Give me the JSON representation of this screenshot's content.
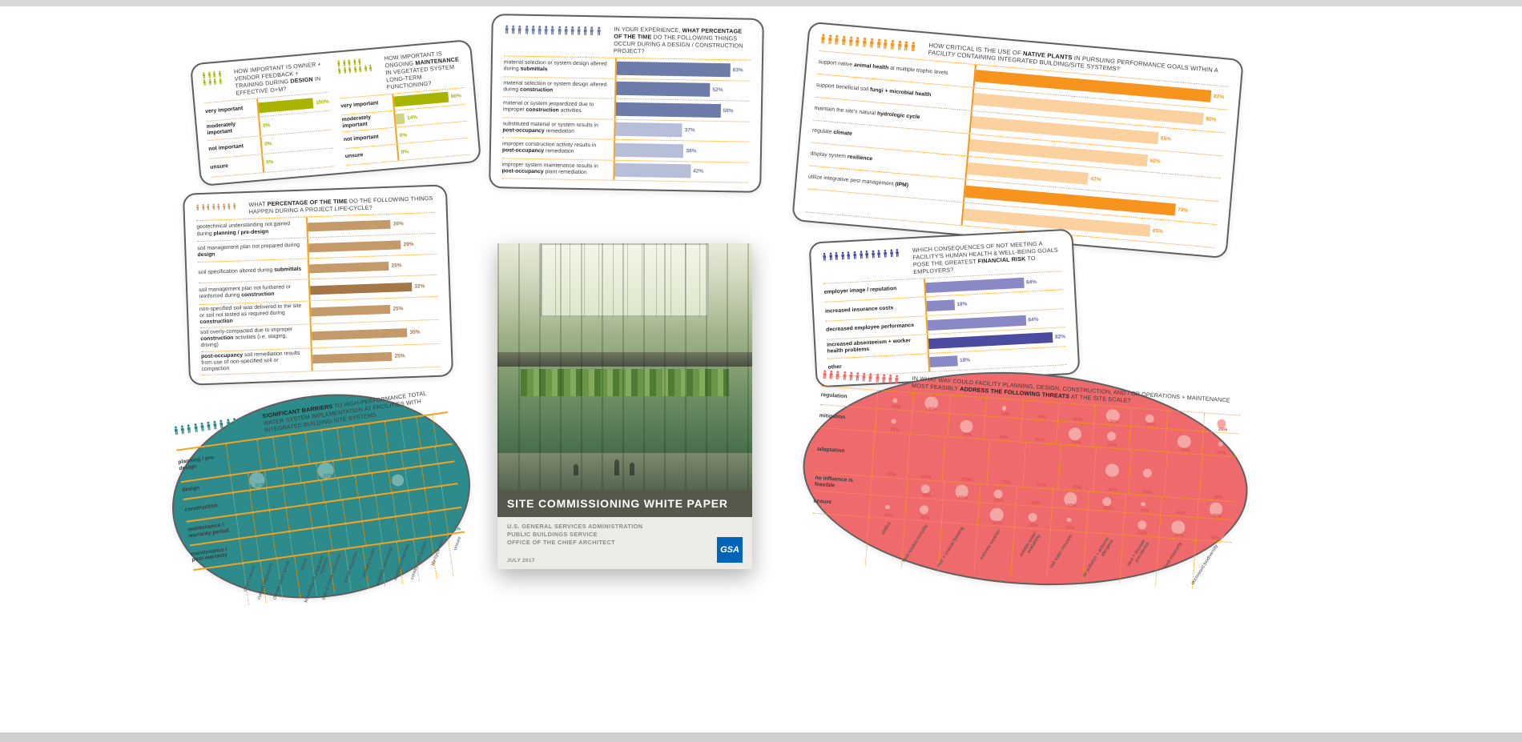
{
  "canvas": {
    "background": "#ffffff",
    "edge_strip_color": "#d6d9d5"
  },
  "chart_data": [
    {
      "id": "design-feedback-importance",
      "type": "bar",
      "title": "HOW IMPORTANT IS OWNER + VENDOR FEEDBACK + TRAINING DURING **DESIGN** IN EFFECTIVE O+M?",
      "categories": [
        "**very important**",
        "**moderately important**",
        "**not important**",
        "**unsure**"
      ],
      "values": [
        100,
        0,
        0,
        0
      ],
      "variants": [
        "dark",
        "dark",
        "dark",
        "dark"
      ],
      "unit": "%",
      "xlim": [
        0,
        100
      ],
      "grid": "dotted-orange",
      "legend_position": "none",
      "people_rows": [
        4,
        4
      ],
      "colors": {
        "bar": "#a9b400",
        "bar_light": "#ced387",
        "bar_deep": "#8f9900",
        "value": "#a9b400",
        "axis": "#f7a21f",
        "people": "#a9b400"
      }
    },
    {
      "id": "maintenance-importance",
      "type": "bar",
      "title": "HOW IMPORTANT IS ONGOING **MAINTENANCE** IN VEGETATED SYSTEM LONG-TERM FUNCTIONING?",
      "categories": [
        "**very important**",
        "**moderately important**",
        "**not important**",
        "**unsure**"
      ],
      "values": [
        86,
        14,
        0,
        0
      ],
      "variants": [
        "dark",
        "light",
        "dark",
        "dark"
      ],
      "unit": "%",
      "xlim": [
        0,
        100
      ],
      "grid": "dotted-orange",
      "legend_position": "none",
      "people_rows": [
        5,
        7
      ],
      "colors": {
        "bar": "#a9b400",
        "bar_light": "#ced387",
        "bar_deep": "#8f9900",
        "value": "#a9b400",
        "axis": "#f7a21f",
        "people": "#a9b400"
      }
    },
    {
      "id": "design-construction-occurrence",
      "type": "bar",
      "title": "IN YOUR EXPERIENCE, **WHAT PERCENTAGE OF THE TIME** DO THE FOLLOWING THINGS OCCUR DURING A DESIGN / CONSTRUCTION PROJECT?",
      "categories": [
        "material selection or system design altered during **submittals**",
        "material selection or system design altered during **construction**",
        "material or system jeopardized due to improper **construction** activities",
        "substituted material or system results in **post-occupancy** remediation",
        "improper construction activity results in **post-occupancy** remediation",
        "improper system maintenance results in **post-occupancy** plant remediation"
      ],
      "values": [
        63,
        52,
        58,
        37,
        38,
        42
      ],
      "variants": [
        "dark",
        "dark",
        "dark",
        "light",
        "light",
        "light"
      ],
      "unit": "%",
      "xlim": [
        0,
        100
      ],
      "grid": "dotted-orange",
      "legend_position": "none",
      "people_rows": [
        15
      ],
      "colors": {
        "bar": "#6d7ba8",
        "bar_light": "#b7bed8",
        "bar_deep": "#555f8d",
        "value": "#6d7ba8",
        "axis": "#f7a21f",
        "people": "#6d7ba8"
      }
    },
    {
      "id": "native-plants-criticality",
      "type": "bar",
      "title": "HOW CRITICAL IS THE USE OF **NATIVE PLANTS** IN PURSUING PERFORMANCE GOALS WITHIN A FACILITY CONTAINING INTEGRATED BUILDING/SITE SYSTEMS?",
      "categories": [
        "support native **animal health** at multiple trophic levels",
        "support beneficial soil **fungi + microbial health**",
        "maintain the site's natural **hydrologic cycle**",
        "regulate **climate**",
        "display system **resilience**",
        "utilize integrative pest management **(IPM)**",
        ""
      ],
      "values": [
        82,
        80,
        65,
        62,
        42,
        73,
        65
      ],
      "variants": [
        "dark",
        "light",
        "light",
        "light",
        "light",
        "dark",
        "light"
      ],
      "unit": "%",
      "xlim": [
        0,
        100
      ],
      "grid": "dotted-orange",
      "legend_position": "none",
      "people_rows": [
        14
      ],
      "colors": {
        "bar": "#f7941d",
        "bar_light": "#fbd1a0",
        "bar_deep": "#e07f0a",
        "value": "#f7941d",
        "axis": "#f7941d",
        "people": "#f7941d"
      }
    },
    {
      "id": "project-lifecycle-soil",
      "type": "bar",
      "title": "WHAT **PERCENTAGE OF THE TIME** DO THE FOLLOWING THINGS HAPPEN DURING A PROJECT LIFE-CYCLE?",
      "categories": [
        "geotechnical understanding not gained during **planning / pre-design**",
        "soil management plan not prepared during **design**",
        "soil specification altered during **submittals**",
        "soil management plan not furthered or reinforced during **construction**",
        "non-specified soil was delivered to the site or soil not tested as required during **construction**",
        "soil overly-compacted due to improper **construction** activities (i.e. staging, driving)",
        "**post-occupancy** soil remediation results from use of non-specified soil or compaction"
      ],
      "values": [
        26,
        29,
        25,
        32,
        25,
        30,
        25
      ],
      "variants": [
        "dark",
        "dark",
        "dark",
        "deep",
        "dark",
        "dark",
        "dark"
      ],
      "unit": "%",
      "xlim": [
        0,
        40
      ],
      "grid": "dotted-orange",
      "legend_position": "none",
      "people_rows": [
        8
      ],
      "colors": {
        "bar": "#c59a6b",
        "bar_light": "#e0c5a4",
        "bar_deep": "#a47648",
        "value": "#a47648",
        "axis": "#f7a21f",
        "people": "#c59a6b"
      }
    },
    {
      "id": "financial-risk-consequences",
      "type": "bar",
      "title": "WHICH CONSEQUENCES OF NOT MEETING A FACILITY'S HUMAN HEALTH & WELL-BEING GOALS POSE THE GREATEST **FINANCIAL RISK** TO EMPLOYERS?",
      "categories": [
        "**employer image / reputation**",
        "**increased insurance costs**",
        "**decreased employee performance**",
        "**increased absenteeism + worker health problems**",
        "**other**"
      ],
      "values": [
        64,
        18,
        64,
        82,
        18
      ],
      "variants": [
        "dark",
        "dark",
        "dark",
        "deep",
        "dark"
      ],
      "unit": "%",
      "xlim": [
        0,
        100
      ],
      "grid": "dotted-orange",
      "legend_position": "none",
      "people_rows": [
        13
      ],
      "colors": {
        "bar": "#8a89c6",
        "bar_light": "#c3c2e0",
        "bar_deep": "#4c4b9f",
        "value": "#6b69b4",
        "axis": "#f7a21f",
        "people": "#4c4b9f"
      }
    },
    {
      "id": "water-system-barriers",
      "type": "scatter",
      "title": "**SIGNIFICANT BARRIERS** TO HIGH-PERFORMANCE TOTAL WATER SYSTEM IMPLEMENTATION AT FACILITIES WITH INTEGRATED BUILDING-SITE SYSTEMS",
      "rows": [
        "planning / pre-design",
        "design",
        "construction",
        "maintenance / warranty period",
        "maintenance / post-warranty"
      ],
      "columns": [
        "client interest",
        "current regulations",
        "climate (don't know)",
        "space",
        "knowledge of integrated systems",
        "data to make a decision",
        "design expertise",
        "delivery model",
        "available technology",
        "available materials",
        "construction budget",
        "life-cycle cost",
        "unsure"
      ],
      "matrix": [
        [
          62,
          8,
          0,
          0,
          15,
          0,
          0,
          8,
          0,
          0,
          8,
          0,
          0
        ],
        [
          8,
          31,
          0,
          8,
          0,
          31,
          8,
          0,
          16,
          0,
          0,
          0,
          0
        ],
        [
          0,
          8,
          0,
          42,
          0,
          17,
          0,
          0,
          0,
          25,
          0,
          23,
          0
        ],
        [
          23,
          0,
          0,
          46,
          0,
          0,
          15,
          0,
          0,
          0,
          23,
          0,
          0
        ],
        [
          15,
          0,
          0,
          46,
          0,
          15,
          0,
          8,
          0,
          0,
          0,
          15,
          8
        ]
      ],
      "unit": "%",
      "grid": "orange-rows-dotted-columns",
      "legend_position": "none",
      "people_rows": [
        12
      ],
      "colors": {
        "bubble": "#2e8b8b",
        "bubble_light": "#74b2b0",
        "value": "#2e8b8b",
        "grid": "#f7a21f",
        "people": "#2e8b8b"
      }
    },
    {
      "id": "site-threats-feasibility",
      "type": "scatter",
      "title": "IN WHAT WAY COULD FACILITY PLANNING, DESIGN, CONSTRUCTION, AND / OR OPERATIONS + MAINTENANCE MOST FEASIBLY **ADDRESS THE FOLLOWING THREATS** AT THE SITE SCALE?",
      "rows": [
        "regulation",
        "mitigation",
        "adaptation",
        "no influence is feasible",
        "unsure"
      ],
      "columns": [
        "wildfire",
        "heat-related mortality",
        "river + coastal flooding",
        "extreme weather",
        "potable water availability",
        "salt water intrusion",
        "air pollution + airborne allergens",
        "pest + disease prevalence",
        "food insecurity",
        "decreased biodiversity"
      ],
      "matrix": [
        [
          10,
          30,
          0,
          10,
          40,
          40,
          30,
          20,
          0,
          20
        ],
        [
          10,
          0,
          30,
          40,
          50,
          30,
          20,
          0,
          30,
          10
        ],
        [
          70,
          60,
          100,
          70,
          50,
          40,
          30,
          20,
          0,
          40
        ],
        [
          0,
          20,
          30,
          20,
          40,
          30,
          20,
          10,
          40,
          30
        ],
        [
          10,
          20,
          0,
          30,
          20,
          10,
          0,
          20,
          30,
          50
        ]
      ],
      "unit": "%",
      "grid": "dotted-orange",
      "legend_position": "none",
      "people_rows": [
        12
      ],
      "colors": {
        "bubble": "#ee6a6c",
        "bubble_light": "#f4a7a5",
        "value": "#e05255",
        "grid": "#f7a21f",
        "people": "#ee6a6c"
      }
    }
  ],
  "book": {
    "title": "SITE COMMISSIONING WHITE PAPER",
    "org_lines": [
      "U.S. GENERAL SERVICES ADMINISTRATION",
      "PUBLIC BUILDINGS SERVICE",
      "OFFICE OF THE CHIEF ARCHITECT"
    ],
    "date": "JULY 2017",
    "logo_text": "GSA",
    "colors": {
      "title_band": "#55584a",
      "logo": "#0065b8"
    }
  }
}
